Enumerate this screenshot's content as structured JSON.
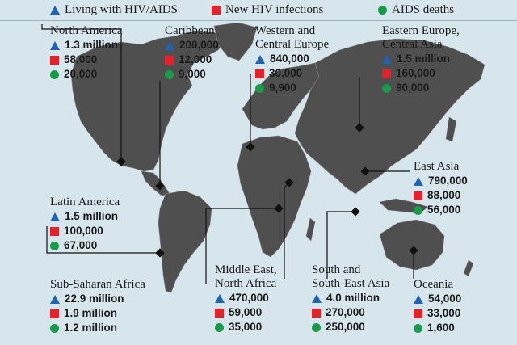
{
  "legend": {
    "living": "Living with HIV/AIDS",
    "new": "New HIV infections",
    "deaths": "AIDS deaths"
  },
  "colors": {
    "ocean": "#d7e5ed",
    "land": "#4f4f4f",
    "living": "#1e63b4",
    "new": "#e3232b",
    "deaths": "#1c9a4b"
  },
  "regions": {
    "north_america": {
      "name": "North America",
      "living": "1.3 million",
      "new": "58,000",
      "deaths": "20,000"
    },
    "caribbean": {
      "name": "Caribbean",
      "living": "200,000",
      "new": "12,000",
      "deaths": "9,000"
    },
    "western_europe": {
      "name1": "Western and",
      "name2": "Central Europe",
      "living": "840,000",
      "new": "30,000",
      "deaths": "9,900"
    },
    "eastern_europe": {
      "name1": "Eastern Europe,",
      "name2": "Central Asia",
      "living": "1.5 million",
      "new": "160,000",
      "deaths": "90,000"
    },
    "east_asia": {
      "name": "East Asia",
      "living": "790,000",
      "new": "88,000",
      "deaths": "56,000"
    },
    "latin_america": {
      "name": "Latin America",
      "living": "1.5 million",
      "new": "100,000",
      "deaths": "67,000"
    },
    "sub_saharan": {
      "name": "Sub-Saharan Africa",
      "living": "22.9 million",
      "new": "1.9 million",
      "deaths": "1.2 million"
    },
    "middle_east": {
      "name1": "Middle East,",
      "name2": "North Africa",
      "living": "470,000",
      "new": "59,000",
      "deaths": "35,000"
    },
    "south_east_asia": {
      "name1": "South and",
      "name2": "South-East Asia",
      "living": "4.0 million",
      "new": "270,000",
      "deaths": "250,000"
    },
    "oceania": {
      "name": "Oceania",
      "living": "54,000",
      "new": "33,000",
      "deaths": "1,600"
    }
  }
}
